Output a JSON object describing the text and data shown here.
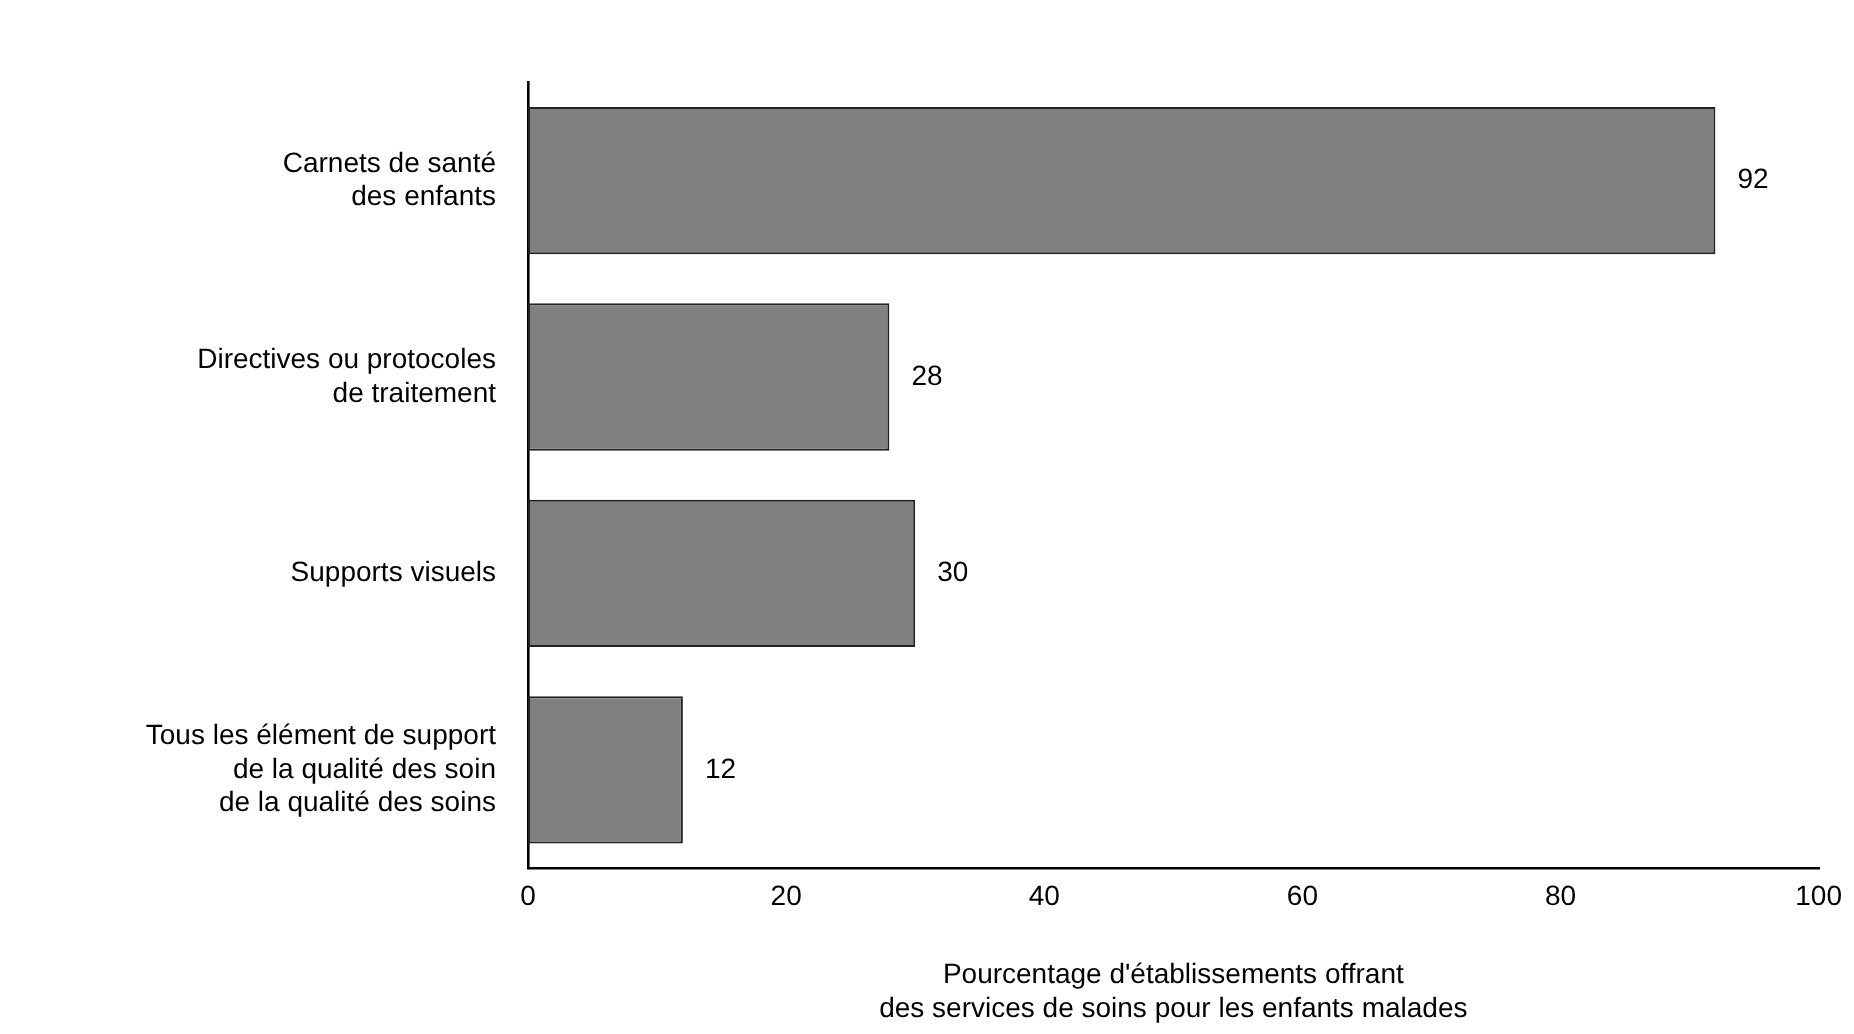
{
  "chart_data": {
    "type": "bar",
    "orientation": "horizontal",
    "xlabel": "Pourcentage d'établissements offrant\ndes services de soins pour les enfants malades",
    "categories": [
      "Carnets de santé\ndes enfants",
      "Directives ou protocoles\nde traitement",
      "Supports visuels",
      "Tous les élément de support\nde la qualité des soin\nde la qualité des soins"
    ],
    "values": [
      92,
      28,
      30,
      12
    ],
    "color": "#808080",
    "xlim": [
      0,
      100
    ],
    "xticks": [
      0,
      20,
      40,
      60,
      80,
      100
    ],
    "grid": false,
    "legend": false,
    "data_labels": true
  }
}
